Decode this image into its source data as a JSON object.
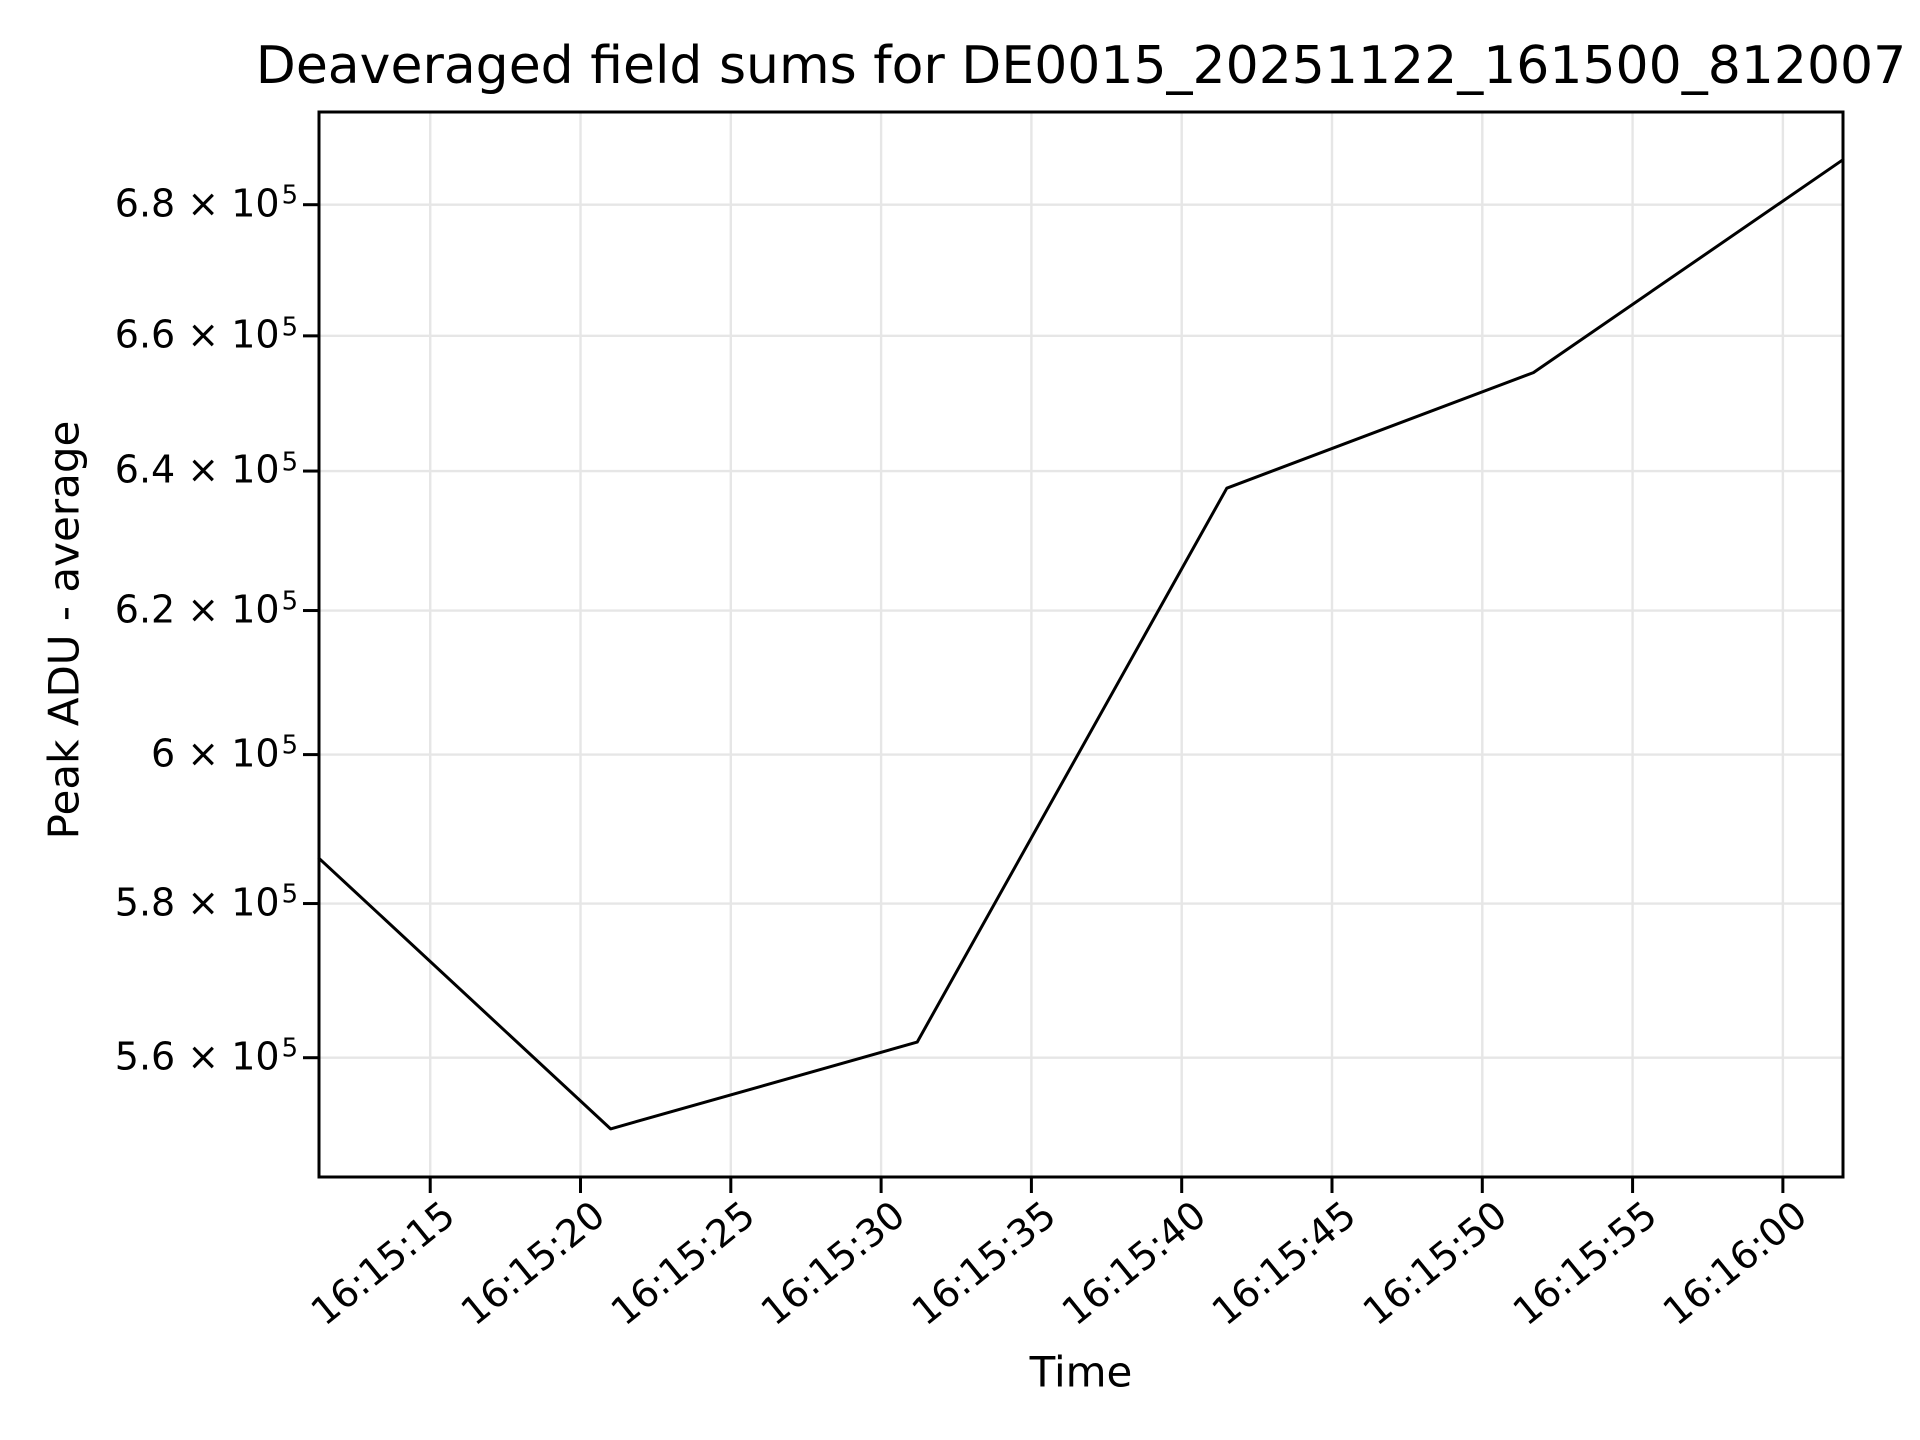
{
  "title": "Deaveraged field sums for DE0015_20251122_161500_812007",
  "chart_data": {
    "type": "line",
    "title": "Deaveraged field sums for DE0015_20251122_161500_812007",
    "xlabel": "Time",
    "ylabel": "Peak ADU - average",
    "yscale": "log",
    "grid": true,
    "legend": false,
    "background_color": "#ffffff",
    "line_color": "#000000",
    "grid_color": "#e6e6e6",
    "spine_color": "#000000",
    "ylim": [
      545000,
      694500
    ],
    "xlim_seconds_after_16_15_00": [
      11.3,
      62.0
    ],
    "x_ticks": [
      {
        "label": "16:15:15",
        "seconds": 15
      },
      {
        "label": "16:15:20",
        "seconds": 20
      },
      {
        "label": "16:15:25",
        "seconds": 25
      },
      {
        "label": "16:15:30",
        "seconds": 30
      },
      {
        "label": "16:15:35",
        "seconds": 35
      },
      {
        "label": "16:15:40",
        "seconds": 40
      },
      {
        "label": "16:15:45",
        "seconds": 45
      },
      {
        "label": "16:15:50",
        "seconds": 50
      },
      {
        "label": "16:15:55",
        "seconds": 55
      },
      {
        "label": "16:16:00",
        "seconds": 60
      }
    ],
    "y_ticks": [
      {
        "mantissa": "6.8",
        "base": "10",
        "exponent": "5",
        "value": 680000
      },
      {
        "mantissa": "6.6",
        "base": "10",
        "exponent": "5",
        "value": 660000
      },
      {
        "mantissa": "6.4",
        "base": "10",
        "exponent": "5",
        "value": 640000
      },
      {
        "mantissa": "6.2",
        "base": "10",
        "exponent": "5",
        "value": 620000
      },
      {
        "mantissa": "6",
        "base": "10",
        "exponent": "5",
        "value": 600000
      },
      {
        "mantissa": "5.8",
        "base": "10",
        "exponent": "5",
        "value": 580000
      },
      {
        "mantissa": "5.6",
        "base": "10",
        "exponent": "5",
        "value": 560000
      }
    ],
    "series": [
      {
        "name": "Peak ADU - average",
        "points": [
          {
            "time": "16:15:11.3",
            "seconds": 11.3,
            "value": 586000
          },
          {
            "time": "16:15:21.0",
            "seconds": 21.0,
            "value": 551000
          },
          {
            "time": "16:15:31.2",
            "seconds": 31.2,
            "value": 562000
          },
          {
            "time": "16:15:41.5",
            "seconds": 41.5,
            "value": 637500
          },
          {
            "time": "16:15:51.7",
            "seconds": 51.7,
            "value": 654500
          },
          {
            "time": "16:16:02.0",
            "seconds": 62.0,
            "value": 687000
          }
        ]
      }
    ]
  }
}
